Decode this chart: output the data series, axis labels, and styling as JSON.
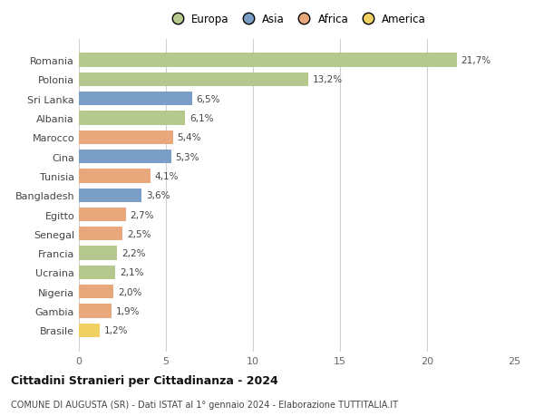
{
  "countries": [
    "Romania",
    "Polonia",
    "Sri Lanka",
    "Albania",
    "Marocco",
    "Cina",
    "Tunisia",
    "Bangladesh",
    "Egitto",
    "Senegal",
    "Francia",
    "Ucraina",
    "Nigeria",
    "Gambia",
    "Brasile"
  ],
  "values": [
    21.7,
    13.2,
    6.5,
    6.1,
    5.4,
    5.3,
    4.1,
    3.6,
    2.7,
    2.5,
    2.2,
    2.1,
    2.0,
    1.9,
    1.2
  ],
  "labels": [
    "21,7%",
    "13,2%",
    "6,5%",
    "6,1%",
    "5,4%",
    "5,3%",
    "4,1%",
    "3,6%",
    "2,7%",
    "2,5%",
    "2,2%",
    "2,1%",
    "2,0%",
    "1,9%",
    "1,2%"
  ],
  "continents": [
    "Europa",
    "Europa",
    "Asia",
    "Europa",
    "Africa",
    "Asia",
    "Africa",
    "Asia",
    "Africa",
    "Africa",
    "Europa",
    "Europa",
    "Africa",
    "Africa",
    "America"
  ],
  "colors": {
    "Europa": "#b5c98e",
    "Asia": "#7b9ec7",
    "Africa": "#e8a87c",
    "America": "#f0d060"
  },
  "xlim": [
    0,
    25
  ],
  "xticks": [
    0,
    5,
    10,
    15,
    20,
    25
  ],
  "title": "Cittadini Stranieri per Cittadinanza - 2024",
  "subtitle": "COMUNE DI AUGUSTA (SR) - Dati ISTAT al 1° gennaio 2024 - Elaborazione TUTTITALIA.IT",
  "background_color": "#ffffff",
  "grid_color": "#d0d0d0",
  "bar_height": 0.72,
  "legend_order": [
    "Europa",
    "Asia",
    "Africa",
    "America"
  ]
}
